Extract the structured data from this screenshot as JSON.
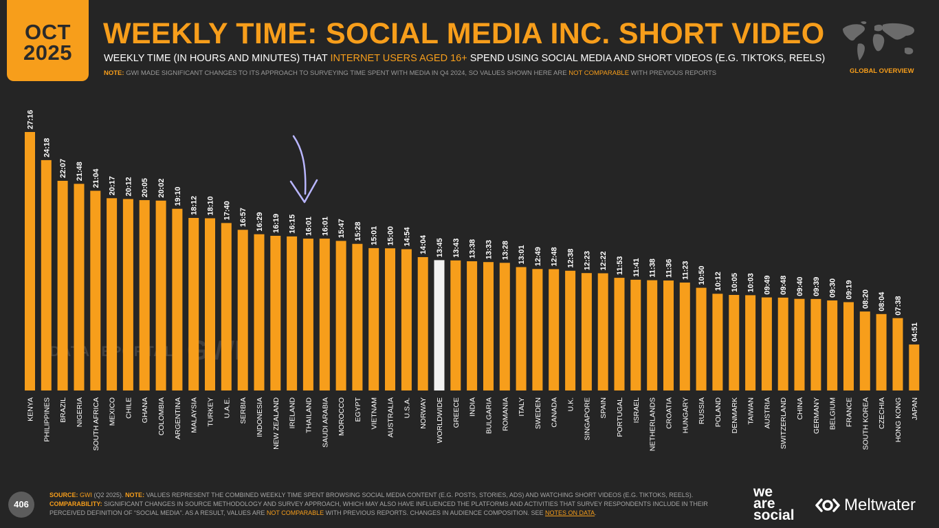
{
  "badge": {
    "month": "OCT",
    "year": "2025"
  },
  "header": {
    "title": "WEEKLY TIME: SOCIAL MEDIA INC. SHORT VIDEO",
    "subtitle_pre": "WEEKLY TIME (IN HOURS AND MINUTES) THAT ",
    "subtitle_highlight": "INTERNET USERS AGED 16+",
    "subtitle_post": " SPEND USING SOCIAL MEDIA AND SHORT VIDEOS (E.G. TIKTOKS, REELS)",
    "note_label": "NOTE:",
    "note_pre": " GWI MADE SIGNIFICANT CHANGES TO ITS APPROACH TO SURVEYING TIME SPENT WITH MEDIA IN Q4 2024, SO VALUES SHOWN HERE ARE ",
    "note_highlight": "NOT COMPARABLE",
    "note_post": " WITH PREVIOUS REPORTS",
    "region": "GLOBAL OVERVIEW"
  },
  "watermarks": {
    "datareportal": "DATAREPORTAL",
    "gwi": "GWI."
  },
  "chart_data": {
    "type": "bar",
    "title": "WEEKLY TIME: SOCIAL MEDIA INC. SHORT VIDEO",
    "categories": [
      "KENYA",
      "PHILIPPINES",
      "BRAZIL",
      "NIGERIA",
      "SOUTH AFRICA",
      "MEXICO",
      "CHILE",
      "GHANA",
      "COLOMBIA",
      "ARGENTINA",
      "MALAYSIA",
      "TURKEY",
      "U.A.E.",
      "SERBIA",
      "INDONESIA",
      "NEW ZEALAND",
      "IRELAND",
      "THAILAND",
      "SAUDI ARABIA",
      "MOROCCO",
      "EGYPT",
      "VIETNAM",
      "AUSTRALIA",
      "U.S.A.",
      "NORWAY",
      "WORLDWIDE",
      "GREECE",
      "INDIA",
      "BULGARIA",
      "ROMANIA",
      "ITALY",
      "SWEDEN",
      "CANADA",
      "U.K.",
      "SINGAPORE",
      "SPAIN",
      "PORTUGAL",
      "ISRAEL",
      "NETHERLANDS",
      "CROATIA",
      "HUNGARY",
      "RUSSIA",
      "POLAND",
      "DENMARK",
      "TAIWAN",
      "AUSTRIA",
      "SWITZERLAND",
      "CHINA",
      "GERMANY",
      "BELGIUM",
      "FRANCE",
      "SOUTH KOREA",
      "CZECHIA",
      "HONG KONG",
      "JAPAN"
    ],
    "labels": [
      "27:16",
      "24:18",
      "22:07",
      "21:48",
      "21:04",
      "20:17",
      "20:12",
      "20:05",
      "20:02",
      "19:10",
      "18:12",
      "18:10",
      "17:40",
      "16:57",
      "16:29",
      "16:19",
      "16:15",
      "16:01",
      "16:01",
      "15:47",
      "15:28",
      "15:01",
      "15:00",
      "14:54",
      "14:04",
      "13:45",
      "13:43",
      "13:38",
      "13:33",
      "13:28",
      "13:01",
      "12:49",
      "12:48",
      "12:38",
      "12:23",
      "12:22",
      "11:53",
      "11:41",
      "11:38",
      "11:36",
      "11:23",
      "10:50",
      "10:12",
      "10:05",
      "10:03",
      "09:49",
      "09:48",
      "09:40",
      "09:39",
      "09:30",
      "09:19",
      "08:20",
      "08:04",
      "07:38",
      "04:51"
    ],
    "values_hours": [
      27.267,
      24.3,
      22.117,
      21.8,
      21.067,
      20.283,
      20.2,
      20.083,
      20.033,
      19.167,
      18.2,
      18.167,
      17.667,
      16.95,
      16.483,
      16.317,
      16.25,
      16.017,
      16.017,
      15.783,
      15.467,
      15.017,
      15.0,
      14.9,
      14.067,
      13.75,
      13.717,
      13.633,
      13.55,
      13.467,
      13.017,
      12.817,
      12.8,
      12.633,
      12.383,
      12.367,
      11.883,
      11.683,
      11.633,
      11.6,
      11.383,
      10.833,
      10.2,
      10.083,
      10.05,
      9.817,
      9.8,
      9.667,
      9.65,
      9.5,
      9.317,
      8.333,
      8.067,
      7.633,
      4.85
    ],
    "highlight_category": "WORLDWIDE",
    "ylim": [
      0,
      27.267
    ],
    "xlabel": "",
    "ylabel": "",
    "colors": {
      "bar": "#f79e1b",
      "highlight": "#f2f2f2",
      "annotation": "#b9b6ff"
    }
  },
  "footer": {
    "page_number": "406",
    "source_label": "SOURCE:",
    "source_link": "GWI",
    "source_text": " (Q2 2025). ",
    "note_label": "NOTE:",
    "note_text": " VALUES REPRESENT THE COMBINED WEEKLY TIME SPENT BROWSING SOCIAL MEDIA CONTENT (E.G. POSTS, STORIES, ADS) AND WATCHING SHORT VIDEOS (E.G. TIKTOKS, REELS). ",
    "comparability_label": "COMPARABILITY:",
    "comparability_pre": " SIGNIFICANT CHANGES IN SOURCE METHODOLOGY AND SURVEY APPROACH, WHICH MAY ALSO HAVE INFLUENCED THE PLATFORMS AND ACTIVITIES THAT SURVEY RESPONDENTS INCLUDE IN THEIR PERCEIVED DEFINITION OF “SOCIAL MEDIA”. AS A RESULT, VALUES ARE ",
    "comparability_highlight": "NOT COMPARABLE",
    "comparability_post": " WITH PREVIOUS REPORTS. CHANGES IN AUDIENCE COMPOSITION. SEE ",
    "notes_link": "NOTES ON DATA",
    "end": "."
  },
  "brands": {
    "we_are_social": [
      "we",
      "are",
      "social"
    ],
    "meltwater": "Meltwater"
  }
}
